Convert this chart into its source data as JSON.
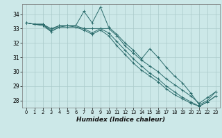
{
  "xlabel": "Humidex (Indice chaleur)",
  "background_color": "#cce8e8",
  "grid_color": "#aacaca",
  "line_color": "#2a6b6b",
  "xlim": [
    -0.5,
    23.5
  ],
  "ylim": [
    27.5,
    34.7
  ],
  "yticks": [
    28,
    29,
    30,
    31,
    32,
    33,
    34
  ],
  "xticks": [
    0,
    1,
    2,
    3,
    4,
    5,
    6,
    7,
    8,
    9,
    10,
    11,
    12,
    13,
    14,
    15,
    16,
    17,
    18,
    19,
    20,
    21,
    22,
    23
  ],
  "series": [
    [
      33.4,
      33.3,
      33.3,
      32.9,
      33.2,
      33.2,
      33.2,
      34.2,
      33.4,
      34.5,
      33.1,
      32.6,
      32.0,
      31.5,
      30.9,
      31.6,
      31.0,
      30.3,
      29.7,
      29.2,
      28.5,
      27.7,
      28.0,
      28.6
    ],
    [
      33.4,
      33.3,
      33.3,
      33.0,
      33.2,
      33.2,
      33.2,
      33.0,
      33.0,
      33.0,
      33.0,
      32.5,
      31.8,
      31.3,
      30.8,
      30.4,
      30.0,
      29.5,
      29.1,
      28.7,
      28.3,
      27.8,
      28.2,
      28.6
    ],
    [
      33.4,
      33.3,
      33.3,
      32.8,
      33.1,
      33.2,
      33.1,
      33.0,
      32.7,
      33.0,
      32.7,
      32.1,
      31.5,
      30.9,
      30.4,
      29.9,
      29.5,
      29.0,
      28.6,
      28.2,
      27.9,
      27.6,
      27.9,
      28.3
    ],
    [
      33.4,
      33.3,
      33.2,
      32.8,
      33.1,
      33.1,
      33.1,
      32.9,
      32.6,
      32.9,
      32.5,
      31.8,
      31.2,
      30.6,
      30.1,
      29.7,
      29.3,
      28.8,
      28.4,
      28.1,
      27.8,
      27.6,
      27.9,
      28.3
    ]
  ],
  "xlabel_fontsize": 6.5,
  "xtick_fontsize": 4.8,
  "ytick_fontsize": 5.5,
  "linewidth": 0.7,
  "markersize": 3.0,
  "markeredgewidth": 0.7
}
